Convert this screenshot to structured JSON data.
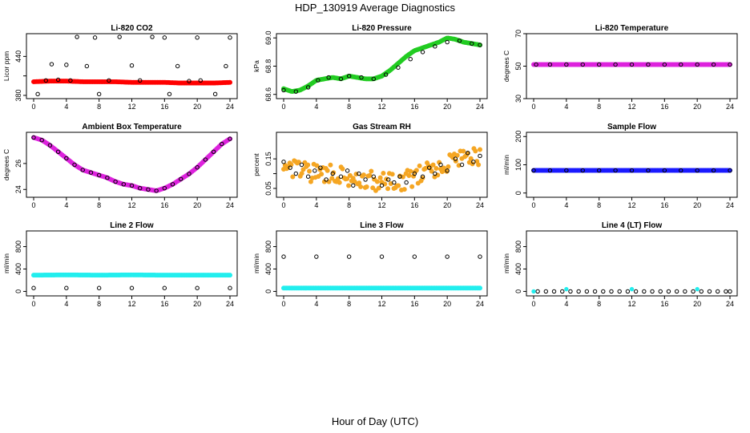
{
  "title": "HDP_130919  Average Diagnostics",
  "x_axis_label": "Hour of Day (UTC)",
  "colors": {
    "red": "#ff0000",
    "green": "#22cc22",
    "magenta": "#dd22dd",
    "orange": "#f5a623",
    "blue": "#1a1aff",
    "cyan": "#22eeee",
    "black": "#000000"
  },
  "chart_data": [
    {
      "type": "scatter",
      "title": "Li-820 CO2",
      "ylabel": "Licor ppm",
      "xlim": [
        0,
        24
      ],
      "ylim": [
        375,
        475
      ],
      "xticks": [
        0,
        4,
        8,
        12,
        16,
        20,
        24
      ],
      "yticks": [
        380,
        410,
        440
      ],
      "yticklabels": [
        "380",
        "",
        "440"
      ],
      "series": [
        {
          "color": "red",
          "band": true,
          "x": [
            0,
            2,
            4,
            6,
            8,
            10,
            12,
            14,
            16,
            18,
            20,
            22,
            24
          ],
          "y": [
            401,
            402,
            402,
            401,
            401,
            401,
            400,
            400,
            400,
            399,
            399,
            399,
            400
          ]
        },
        {
          "color": "black",
          "x": [
            0.5,
            1.5,
            2.2,
            3,
            4,
            4.5,
            5.3,
            6.5,
            7.5,
            8,
            9.2,
            10.5,
            12,
            13,
            14.5,
            16,
            16.6,
            17.6,
            19,
            20,
            20.4,
            22.2,
            23.5,
            24
          ],
          "y": [
            382,
            403,
            428,
            404,
            427,
            403,
            470,
            425,
            469,
            382,
            403,
            470,
            426,
            403,
            470,
            469,
            382,
            425,
            402,
            469,
            403,
            382,
            425,
            469
          ]
        }
      ]
    },
    {
      "type": "scatter",
      "title": "Li-820 Pressure",
      "ylabel": "kPa",
      "xlim": [
        0,
        24
      ],
      "ylim": [
        68.57,
        69.03
      ],
      "xticks": [
        0,
        4,
        8,
        12,
        16,
        20,
        24
      ],
      "yticks": [
        68.6,
        68.8,
        69.0
      ],
      "yticklabels": [
        "68.6",
        "68.8",
        "69.0"
      ],
      "series": [
        {
          "color": "green",
          "band": true,
          "x": [
            0,
            1,
            2,
            3,
            4,
            5,
            6,
            7,
            8,
            9,
            10,
            11,
            12,
            13,
            14,
            15,
            16,
            17,
            18,
            19,
            20,
            21,
            22,
            23,
            24
          ],
          "y": [
            68.64,
            68.62,
            68.63,
            68.66,
            68.7,
            68.71,
            68.72,
            68.71,
            68.73,
            68.72,
            68.71,
            68.71,
            68.73,
            68.77,
            68.82,
            68.87,
            68.91,
            68.93,
            68.95,
            68.97,
            69.0,
            68.99,
            68.97,
            68.96,
            68.95
          ]
        },
        {
          "color": "black",
          "x": [
            0,
            1.5,
            3,
            4.2,
            5.5,
            7,
            8,
            9.5,
            11,
            12.5,
            14,
            15.5,
            17,
            18.5,
            20,
            21.5,
            23,
            24
          ],
          "y": [
            68.63,
            68.62,
            68.65,
            68.7,
            68.72,
            68.71,
            68.73,
            68.72,
            68.71,
            68.74,
            68.79,
            68.85,
            68.9,
            68.94,
            68.97,
            68.98,
            68.96,
            68.95
          ]
        }
      ]
    },
    {
      "type": "scatter",
      "title": "Li-820 Temperature",
      "ylabel": "degrees C",
      "xlim": [
        0,
        24
      ],
      "ylim": [
        30,
        70
      ],
      "xticks": [
        0,
        4,
        8,
        12,
        16,
        20,
        24
      ],
      "yticks": [
        30,
        50,
        70
      ],
      "yticklabels": [
        "30",
        "50",
        "70"
      ],
      "series": [
        {
          "color": "magenta",
          "band": true,
          "x": [
            0,
            4,
            8,
            12,
            16,
            20,
            24
          ],
          "y": [
            51,
            51,
            51,
            51,
            51,
            51,
            51
          ]
        },
        {
          "color": "black",
          "x": [
            0.3,
            2,
            4,
            6,
            8,
            10,
            12,
            14,
            16,
            18,
            20,
            22,
            24
          ],
          "y": [
            51,
            51,
            51,
            51,
            51,
            51,
            51,
            51,
            51,
            51,
            51,
            51,
            51
          ]
        }
      ]
    },
    {
      "type": "scatter",
      "title": "Ambient Box Temperature",
      "ylabel": "degrees C",
      "xlim": [
        0,
        24
      ],
      "ylim": [
        23.4,
        28.4
      ],
      "xticks": [
        0,
        4,
        8,
        12,
        16,
        20,
        24
      ],
      "yticks": [
        24,
        26
      ],
      "yticklabels": [
        "24",
        "26"
      ],
      "series": [
        {
          "color": "magenta",
          "band": true,
          "x": [
            0,
            1,
            2,
            3,
            4,
            5,
            6,
            7,
            8,
            9,
            10,
            11,
            12,
            13,
            14,
            15,
            16,
            17,
            18,
            19,
            20,
            21,
            22,
            23,
            24
          ],
          "y": [
            28.0,
            27.8,
            27.4,
            26.9,
            26.4,
            25.9,
            25.5,
            25.3,
            25.1,
            24.9,
            24.6,
            24.4,
            24.3,
            24.1,
            24.0,
            23.9,
            24.1,
            24.4,
            24.8,
            25.2,
            25.7,
            26.3,
            26.9,
            27.5,
            27.9
          ]
        },
        {
          "color": "black",
          "x": [
            0,
            1,
            2,
            3,
            4,
            5,
            6,
            7,
            8,
            9,
            10,
            11,
            12,
            13,
            14,
            15,
            16,
            17,
            18,
            19,
            20,
            21,
            22,
            23,
            24
          ],
          "y": [
            28.0,
            27.8,
            27.4,
            26.9,
            26.4,
            25.9,
            25.5,
            25.3,
            25.1,
            24.9,
            24.6,
            24.4,
            24.3,
            24.1,
            24.0,
            23.9,
            24.1,
            24.4,
            24.8,
            25.2,
            25.7,
            26.3,
            26.9,
            27.5,
            27.9
          ]
        }
      ]
    },
    {
      "type": "scatter",
      "title": "Gas Stream RH",
      "ylabel": "percent",
      "xlim": [
        0,
        24
      ],
      "ylim": [
        0.02,
        0.24
      ],
      "xticks": [
        0,
        4,
        8,
        12,
        16,
        20,
        24
      ],
      "yticks": [
        0.05,
        0.1,
        0.15
      ],
      "yticklabels": [
        "0.05",
        "",
        "0.15"
      ],
      "series": [
        {
          "color": "orange",
          "band": true,
          "spread": 0.04,
          "x": [
            0,
            2,
            4,
            6,
            8,
            10,
            12,
            14,
            16,
            18,
            20,
            22,
            24
          ],
          "y": [
            0.12,
            0.11,
            0.1,
            0.1,
            0.09,
            0.08,
            0.07,
            0.07,
            0.09,
            0.11,
            0.14,
            0.16,
            0.15
          ]
        },
        {
          "color": "black",
          "x": [
            0,
            0.8,
            1.5,
            2.2,
            3,
            3.8,
            4.5,
            5.2,
            6,
            7,
            7.8,
            8.5,
            9.2,
            10,
            11,
            12,
            12.8,
            13.5,
            14.2,
            15,
            16,
            17,
            17.8,
            18.5,
            19.2,
            20,
            21,
            21.8,
            22.5,
            23.2,
            24
          ],
          "y": [
            0.14,
            0.12,
            0.1,
            0.13,
            0.09,
            0.11,
            0.12,
            0.08,
            0.1,
            0.09,
            0.11,
            0.06,
            0.1,
            0.08,
            0.09,
            0.06,
            0.08,
            0.07,
            0.09,
            0.07,
            0.1,
            0.09,
            0.12,
            0.1,
            0.13,
            0.11,
            0.15,
            0.13,
            0.17,
            0.14,
            0.16
          ]
        }
      ]
    },
    {
      "type": "scatter",
      "title": "Sample Flow",
      "ylabel": "ml/min",
      "xlim": [
        0,
        24
      ],
      "ylim": [
        -15,
        215
      ],
      "xticks": [
        0,
        4,
        8,
        12,
        16,
        20,
        24
      ],
      "yticks": [
        0,
        100,
        200
      ],
      "yticklabels": [
        "0",
        "100",
        "200"
      ],
      "series": [
        {
          "color": "blue",
          "band": true,
          "x": [
            0,
            4,
            8,
            12,
            16,
            20,
            24
          ],
          "y": [
            80,
            80,
            80,
            80,
            80,
            80,
            80
          ]
        },
        {
          "color": "black",
          "x": [
            0,
            2,
            4,
            6,
            8,
            10,
            12,
            14,
            16,
            18,
            20,
            22,
            24
          ],
          "y": [
            80,
            80,
            80,
            80,
            80,
            80,
            80,
            80,
            80,
            80,
            80,
            80,
            80
          ]
        }
      ]
    },
    {
      "type": "scatter",
      "title": "Line 2 Flow",
      "ylabel": "ml/min",
      "xlim": [
        0,
        24
      ],
      "ylim": [
        -80,
        1080
      ],
      "xticks": [
        0,
        4,
        8,
        12,
        16,
        20,
        24
      ],
      "yticks": [
        0,
        400,
        800
      ],
      "yticklabels": [
        "0",
        "400",
        "800"
      ],
      "series": [
        {
          "color": "cyan",
          "band": true,
          "x": [
            0,
            4,
            8,
            12,
            16,
            20,
            24
          ],
          "y": [
            290,
            295,
            290,
            295,
            290,
            290,
            290
          ]
        },
        {
          "color": "black",
          "x": [
            0,
            4,
            8,
            12,
            16,
            20,
            24
          ],
          "y": [
            60,
            60,
            60,
            60,
            60,
            60,
            60
          ]
        }
      ]
    },
    {
      "type": "scatter",
      "title": "Line 3 Flow",
      "ylabel": "ml/min",
      "xlim": [
        0,
        24
      ],
      "ylim": [
        -80,
        1080
      ],
      "xticks": [
        0,
        4,
        8,
        12,
        16,
        20,
        24
      ],
      "yticks": [
        0,
        400,
        800
      ],
      "yticklabels": [
        "0",
        "400",
        "800"
      ],
      "series": [
        {
          "color": "cyan",
          "band": true,
          "x": [
            0,
            4,
            8,
            12,
            16,
            20,
            24
          ],
          "y": [
            60,
            60,
            60,
            60,
            60,
            60,
            60
          ]
        },
        {
          "color": "black",
          "x": [
            0,
            4,
            8,
            12,
            16,
            20,
            24
          ],
          "y": [
            620,
            620,
            620,
            620,
            620,
            620,
            620
          ]
        }
      ]
    },
    {
      "type": "scatter",
      "title": "Line 4 (LT) Flow",
      "ylabel": "ml/min",
      "xlim": [
        0,
        24
      ],
      "ylim": [
        -80,
        1080
      ],
      "xticks": [
        0,
        4,
        8,
        12,
        16,
        20,
        24
      ],
      "yticks": [
        0,
        400,
        800
      ],
      "yticklabels": [
        "0",
        "400",
        "800"
      ],
      "series": [
        {
          "color": "black",
          "x": [
            0.5,
            1.5,
            2.5,
            3.5,
            4.5,
            5.5,
            6.5,
            7.5,
            8.5,
            9.5,
            10.5,
            11.5,
            12.5,
            13.5,
            14.5,
            15.5,
            16.5,
            17.5,
            18.5,
            19.5,
            20.5,
            21.5,
            22.5,
            23.5,
            24
          ],
          "y": [
            0,
            0,
            0,
            0,
            0,
            0,
            0,
            0,
            0,
            0,
            0,
            0,
            0,
            0,
            0,
            0,
            0,
            0,
            0,
            0,
            0,
            0,
            0,
            0,
            0
          ]
        },
        {
          "color": "cyan",
          "x": [
            0,
            4,
            12,
            20
          ],
          "y": [
            0,
            40,
            40,
            40
          ]
        }
      ]
    }
  ]
}
